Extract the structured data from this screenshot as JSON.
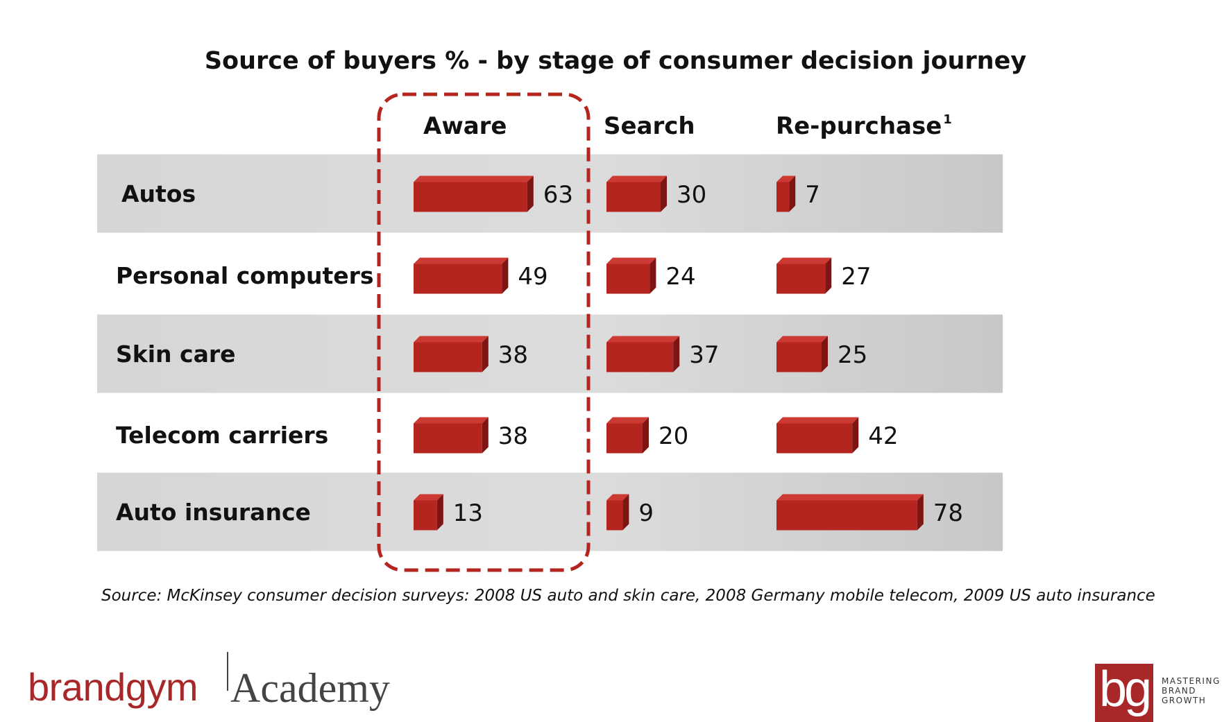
{
  "chart_data": {
    "type": "bar",
    "title": "Source of buyers % - by stage of consumer decision journey",
    "columns": [
      "Aware",
      "Search",
      "Re-purchase"
    ],
    "column_note": "1",
    "categories": [
      "Autos",
      "Personal computers",
      "Skin care",
      "Telecom carriers",
      "Auto insurance"
    ],
    "series": [
      {
        "name": "Aware",
        "values": [
          63,
          49,
          38,
          38,
          13
        ]
      },
      {
        "name": "Search",
        "values": [
          30,
          24,
          37,
          20,
          9
        ]
      },
      {
        "name": "Re-purchase",
        "values": [
          7,
          27,
          25,
          42,
          78
        ]
      }
    ],
    "highlighted_column": "Aware",
    "bar_color": "#b5251f",
    "band_color": "#d9d9d9"
  },
  "source_note": "Source: McKinsey consumer decision surveys: 2008 US auto and skin care, 2008 Germany mobile telecom, 2009 US auto insurance",
  "logos": {
    "left_brand": "brandgym",
    "left_suffix": "Academy",
    "right_mark": "bg",
    "right_tagline": [
      "MASTERING",
      "BRAND",
      "GROWTH"
    ]
  }
}
